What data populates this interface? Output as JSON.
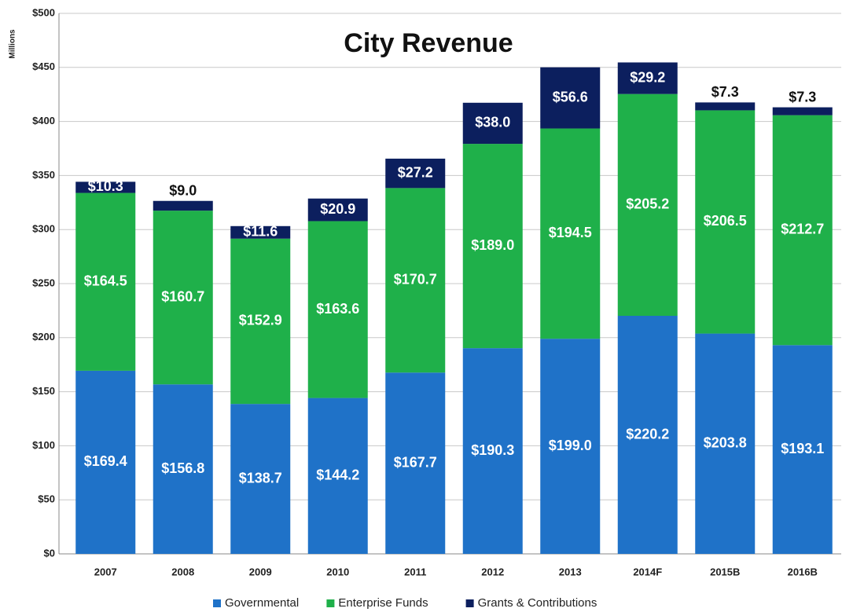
{
  "chart_data": {
    "type": "stacked-bar",
    "title": "City Revenue",
    "y_label": "Millions",
    "categories": [
      "2007",
      "2008",
      "2009",
      "2010",
      "2011",
      "2012",
      "2013",
      "2014F",
      "2015B",
      "2016B"
    ],
    "series": [
      {
        "name": "Governmental",
        "color": "#1f72c8",
        "values": [
          169.4,
          156.8,
          138.7,
          144.2,
          167.7,
          190.3,
          199.0,
          220.2,
          203.8,
          193.1
        ],
        "value_labels": [
          "$169.4",
          "$156.8",
          "$138.7",
          "$144.2",
          "$167.7",
          "$190.3",
          "$199.0",
          "$220.2",
          "$203.8",
          "$193.1"
        ]
      },
      {
        "name": "Enterprise Funds",
        "color": "#1fb04a",
        "values": [
          164.5,
          160.7,
          152.9,
          163.6,
          170.7,
          189.0,
          194.5,
          205.2,
          206.5,
          212.7
        ],
        "value_labels": [
          "$164.5",
          "$160.7",
          "$152.9",
          "$163.6",
          "$170.7",
          "$189.0",
          "$194.5",
          "$205.2",
          "$206.5",
          "$212.7"
        ]
      },
      {
        "name": "Grants & Contributions",
        "color": "#0c1f5e",
        "values": [
          10.3,
          9.0,
          11.6,
          20.9,
          27.2,
          38.0,
          56.6,
          29.2,
          7.3,
          7.3
        ],
        "value_labels": [
          "$10.3",
          "$9.0",
          "$11.6",
          "$20.9",
          "$27.2",
          "$38.0",
          "$56.6",
          "$29.2",
          "$7.3",
          "$7.3"
        ]
      }
    ],
    "ylim": [
      0,
      500
    ],
    "yticks": [
      {
        "value": 0,
        "label": "$0"
      },
      {
        "value": 50,
        "label": "$50"
      },
      {
        "value": 100,
        "label": "$100"
      },
      {
        "value": 150,
        "label": "$150"
      },
      {
        "value": 200,
        "label": "$200"
      },
      {
        "value": 250,
        "label": "$250"
      },
      {
        "value": 300,
        "label": "$300"
      },
      {
        "value": 350,
        "label": "$350"
      },
      {
        "value": 400,
        "label": "$400"
      },
      {
        "value": 450,
        "label": "$450"
      },
      {
        "value": 500,
        "label": "$500"
      }
    ],
    "grid": true,
    "legend": "bottom"
  }
}
